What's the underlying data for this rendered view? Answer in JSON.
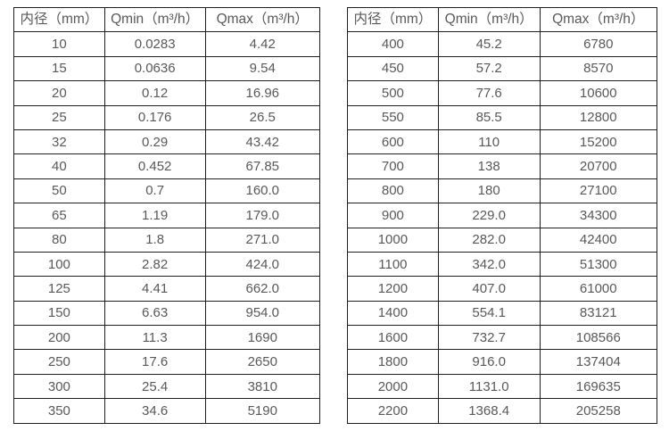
{
  "page": {
    "background_color": "#ffffff",
    "text_color": "#595959",
    "border_color": "#1f1f1f"
  },
  "chart_data": [
    {
      "type": "table",
      "title": "",
      "columns": [
        "内径（mm）",
        "Qmin（m³/h）",
        "Qmax（m³/h）"
      ],
      "rows": [
        [
          "10",
          "0.0283",
          "4.42"
        ],
        [
          "15",
          "0.0636",
          "9.54"
        ],
        [
          "20",
          "0.12",
          "16.96"
        ],
        [
          "25",
          "0.176",
          "26.5"
        ],
        [
          "32",
          "0.29",
          "43.42"
        ],
        [
          "40",
          "0.452",
          "67.85"
        ],
        [
          "50",
          "0.7",
          "160.0"
        ],
        [
          "65",
          "1.19",
          "179.0"
        ],
        [
          "80",
          "1.8",
          "271.0"
        ],
        [
          "100",
          "2.82",
          "424.0"
        ],
        [
          "125",
          "4.41",
          "662.0"
        ],
        [
          "150",
          "6.63",
          "954.0"
        ],
        [
          "200",
          "11.3",
          "1690"
        ],
        [
          "250",
          "17.6",
          "2650"
        ],
        [
          "300",
          "25.4",
          "3810"
        ],
        [
          "350",
          "34.6",
          "5190"
        ]
      ]
    },
    {
      "type": "table",
      "title": "",
      "columns": [
        "内径（mm）",
        "Qmin（m³/h）",
        "Qmax（m³/h）"
      ],
      "rows": [
        [
          "400",
          "45.2",
          "6780"
        ],
        [
          "450",
          "57.2",
          "8570"
        ],
        [
          "500",
          "77.6",
          "10600"
        ],
        [
          "550",
          "85.5",
          "12800"
        ],
        [
          "600",
          "110",
          "15200"
        ],
        [
          "700",
          "138",
          "20700"
        ],
        [
          "800",
          "180",
          "27100"
        ],
        [
          "900",
          "229.0",
          "34300"
        ],
        [
          "1000",
          "282.0",
          "42400"
        ],
        [
          "1100",
          "342.0",
          "51300"
        ],
        [
          "1200",
          "407.0",
          "61000"
        ],
        [
          "1400",
          "554.1",
          "83121"
        ],
        [
          "1600",
          "732.7",
          "108566"
        ],
        [
          "1800",
          "916.0",
          "137404"
        ],
        [
          "2000",
          "1131.0",
          "169635"
        ],
        [
          "2200",
          "1368.4",
          "205258"
        ]
      ]
    }
  ]
}
